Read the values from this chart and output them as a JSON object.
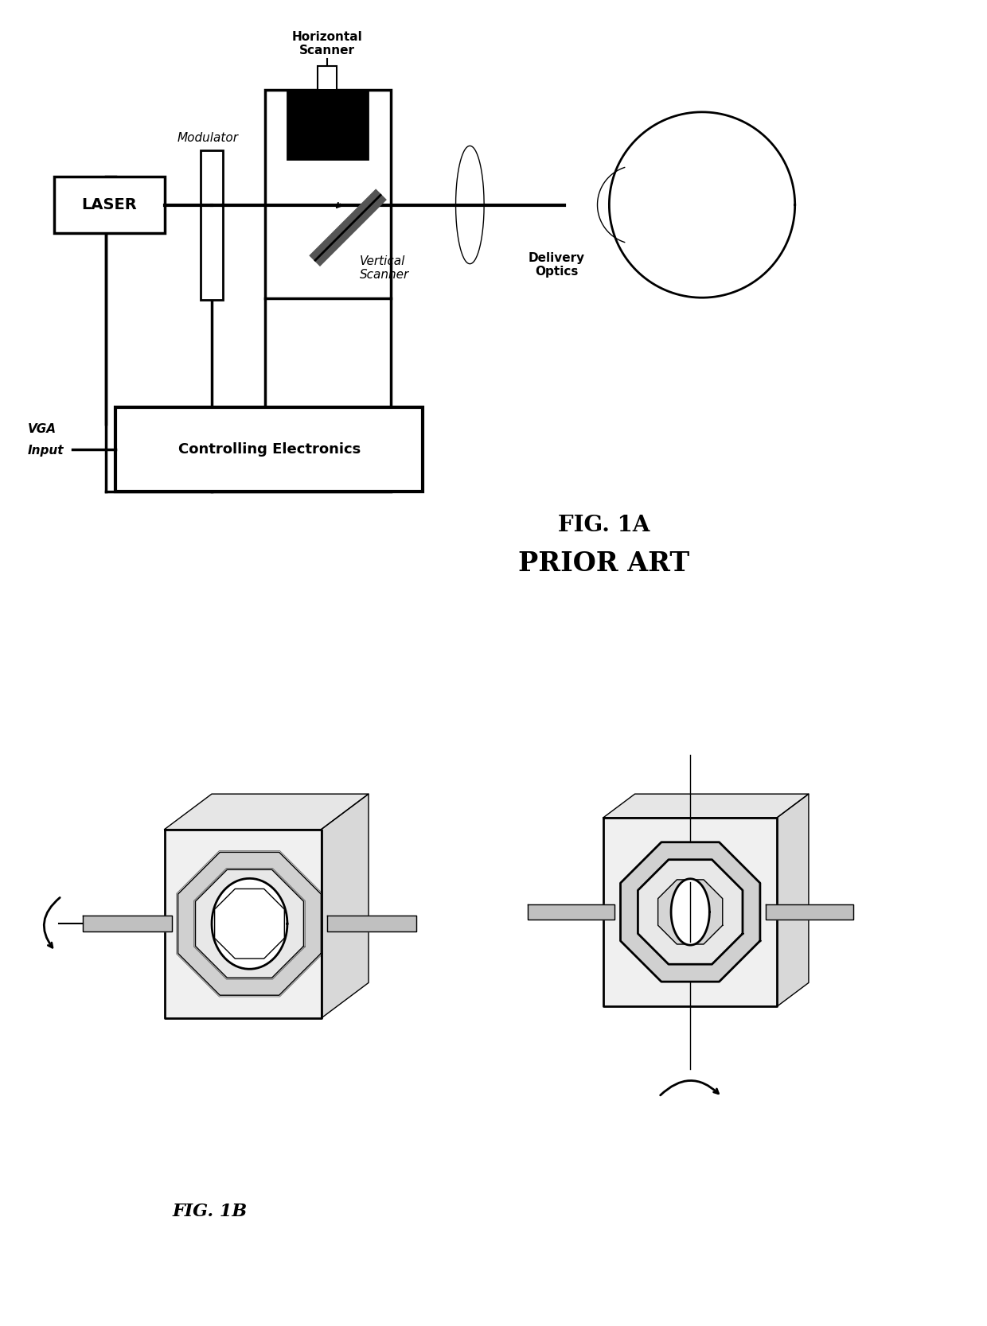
{
  "fig_width": 12.4,
  "fig_height": 16.67,
  "bg_color": "#ffffff",
  "fig1a_label": "FIG. 1A",
  "fig1a_sublabel": "PRIOR ART",
  "fig1b_label": "FIG. 1B",
  "line_color": "#000000",
  "lw": 2.0,
  "lw_thin": 1.0,
  "lw_thick": 2.5
}
